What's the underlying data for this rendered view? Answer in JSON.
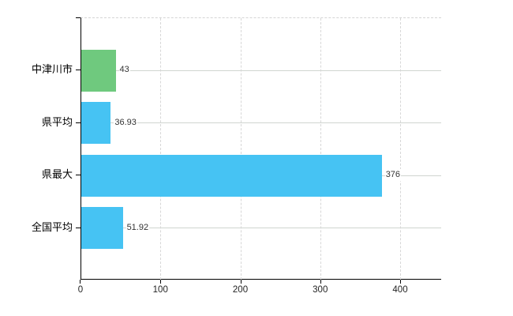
{
  "chart_data": {
    "type": "bar",
    "orientation": "horizontal",
    "title": "",
    "xlabel": "",
    "ylabel": "",
    "categories": [
      "中津川市",
      "県平均",
      "県最大",
      "全国平均"
    ],
    "values": [
      43,
      36.93,
      376,
      51.92
    ],
    "value_labels": [
      "43",
      "36.93",
      "376",
      "51.92"
    ],
    "bar_colors": [
      "#6FC97E",
      "#46C3F3",
      "#46C3F3",
      "#46C3F3"
    ],
    "xlim": [
      0,
      451
    ],
    "x_ticks": [
      0,
      100,
      200,
      300,
      400
    ],
    "x_tick_labels": [
      "0",
      "100",
      "200",
      "300",
      "400"
    ],
    "grid": true,
    "legend": false,
    "colors": {
      "axis": "#000000",
      "grid_horizontal": "#d0d5d0",
      "grid_vertical": "#d7d7d7",
      "value_text": "#333333",
      "category_text": "#000000",
      "tick_text": "#222222",
      "background": "#ffffff"
    }
  }
}
